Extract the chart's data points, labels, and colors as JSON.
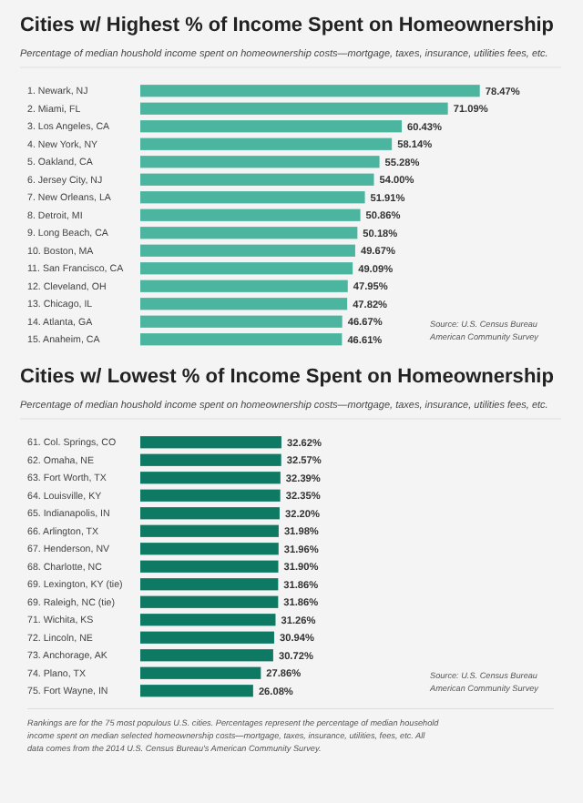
{
  "chart_data": [
    {
      "type": "bar",
      "orientation": "horizontal",
      "title": "Cities w/ Highest % of Income Spent on Homeownership",
      "subtitle": "Percentage of median houshold income spent on homeownership costs—mortgage, taxes, insurance, utilities fees, etc.",
      "categories": [
        "1. Newark, NJ",
        "2. Miami, FL",
        "3. Los Angeles, CA",
        "4. New York, NY",
        "5. Oakland, CA",
        "6. Jersey City, NJ",
        "7. New Orleans, LA",
        "8. Detroit, MI",
        "9. Long Beach, CA",
        "10. Boston, MA",
        "11. San Francisco, CA",
        "12. Cleveland, OH",
        "13. Chicago, IL",
        "14. Atlanta, GA",
        "15. Anaheim, CA"
      ],
      "values": [
        78.47,
        71.09,
        60.43,
        58.14,
        55.28,
        54.0,
        51.91,
        50.86,
        50.18,
        49.67,
        49.09,
        47.95,
        47.82,
        46.67,
        46.61
      ],
      "value_labels": [
        "78.47%",
        "71.09%",
        "60.43%",
        "58.14%",
        "55.28%",
        "54.00%",
        "51.91%",
        "50.86%",
        "50.18%",
        "49.67%",
        "49.09%",
        "47.95%",
        "47.82%",
        "46.67%",
        "46.61%"
      ],
      "color": "#4cb5a0",
      "annotations": [
        "Source:  U.S. Census Bureau American Community Survey"
      ]
    },
    {
      "type": "bar",
      "orientation": "horizontal",
      "title": "Cities w/ Lowest % of Income Spent on Homeownership",
      "subtitle": "Percentage of median houshold income spent on homeownership costs—mortgage, taxes, insurance, utilities fees, etc.",
      "categories": [
        "61. Col. Springs, CO",
        "62. Omaha, NE",
        "63. Fort Worth, TX",
        "64. Louisville, KY",
        "65. Indianapolis, IN",
        "66. Arlington, TX",
        "67. Henderson, NV",
        "68. Charlotte, NC",
        "69. Lexington, KY (tie)",
        "69. Raleigh, NC (tie)",
        "71. Wichita, KS",
        "72. Lincoln, NE",
        "73. Anchorage, AK",
        "74. Plano, TX",
        "75. Fort Wayne, IN"
      ],
      "values": [
        32.62,
        32.57,
        32.39,
        32.35,
        32.2,
        31.98,
        31.96,
        31.9,
        31.86,
        31.86,
        31.26,
        30.94,
        30.72,
        27.86,
        26.08
      ],
      "value_labels": [
        "32.62%",
        "32.57%",
        "32.39%",
        "32.35%",
        "32.20%",
        "31.98%",
        "31.96%",
        "31.90%",
        "31.86%",
        "31.86%",
        "31.26%",
        "30.94%",
        "30.72%",
        "27.86%",
        "26.08%"
      ],
      "color": "#0e7a64",
      "annotations": [
        "Source:  U.S. Census Bureau American Community Survey",
        "Rankings are for the 75 most populous U.S. cities. Percentages represent the percentage of median household income spent on median selected homeownership costs—mortgage, taxes, insurance, utilities, fees, etc. All data comes from the 2014 U.S. Census Bureau's American Community Survey."
      ]
    }
  ]
}
